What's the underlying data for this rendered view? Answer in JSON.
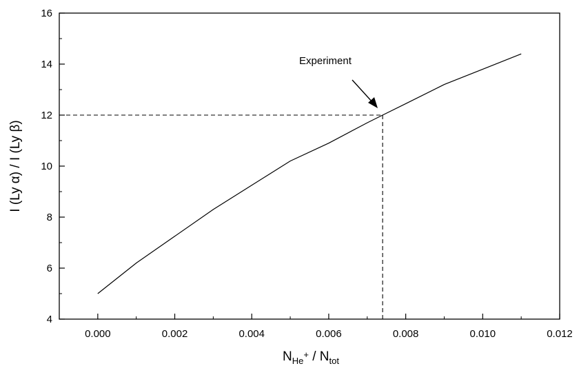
{
  "chart_data": {
    "type": "line",
    "x": [
      0.0,
      0.001,
      0.002,
      0.003,
      0.004,
      0.005,
      0.006,
      0.007,
      0.0074,
      0.008,
      0.009,
      0.01,
      0.011
    ],
    "series": [
      {
        "values": [
          5.0,
          6.2,
          7.25,
          8.3,
          9.25,
          10.2,
          10.9,
          11.7,
          12.0,
          12.45,
          13.2,
          13.8,
          14.4
        ]
      }
    ],
    "xlim": [
      -0.001,
      0.012
    ],
    "ylim": [
      4,
      16
    ],
    "xticks": [
      "0.000",
      "0.002",
      "0.004",
      "0.006",
      "0.008",
      "0.010",
      "0.012"
    ],
    "yticks": [
      "4",
      "6",
      "8",
      "10",
      "12",
      "14",
      "16"
    ],
    "xlabel": {
      "main": "N",
      "sub1": "He",
      "sup": "+",
      "mid": " / N",
      "sub2": "tot"
    },
    "ylabel": "I (Ly α)  /  I (Ly β)",
    "annotation": {
      "text": "Experiment",
      "x": 0.0074,
      "y": 12.0
    },
    "grid": false,
    "legend": "none",
    "line_color": "#000000"
  }
}
